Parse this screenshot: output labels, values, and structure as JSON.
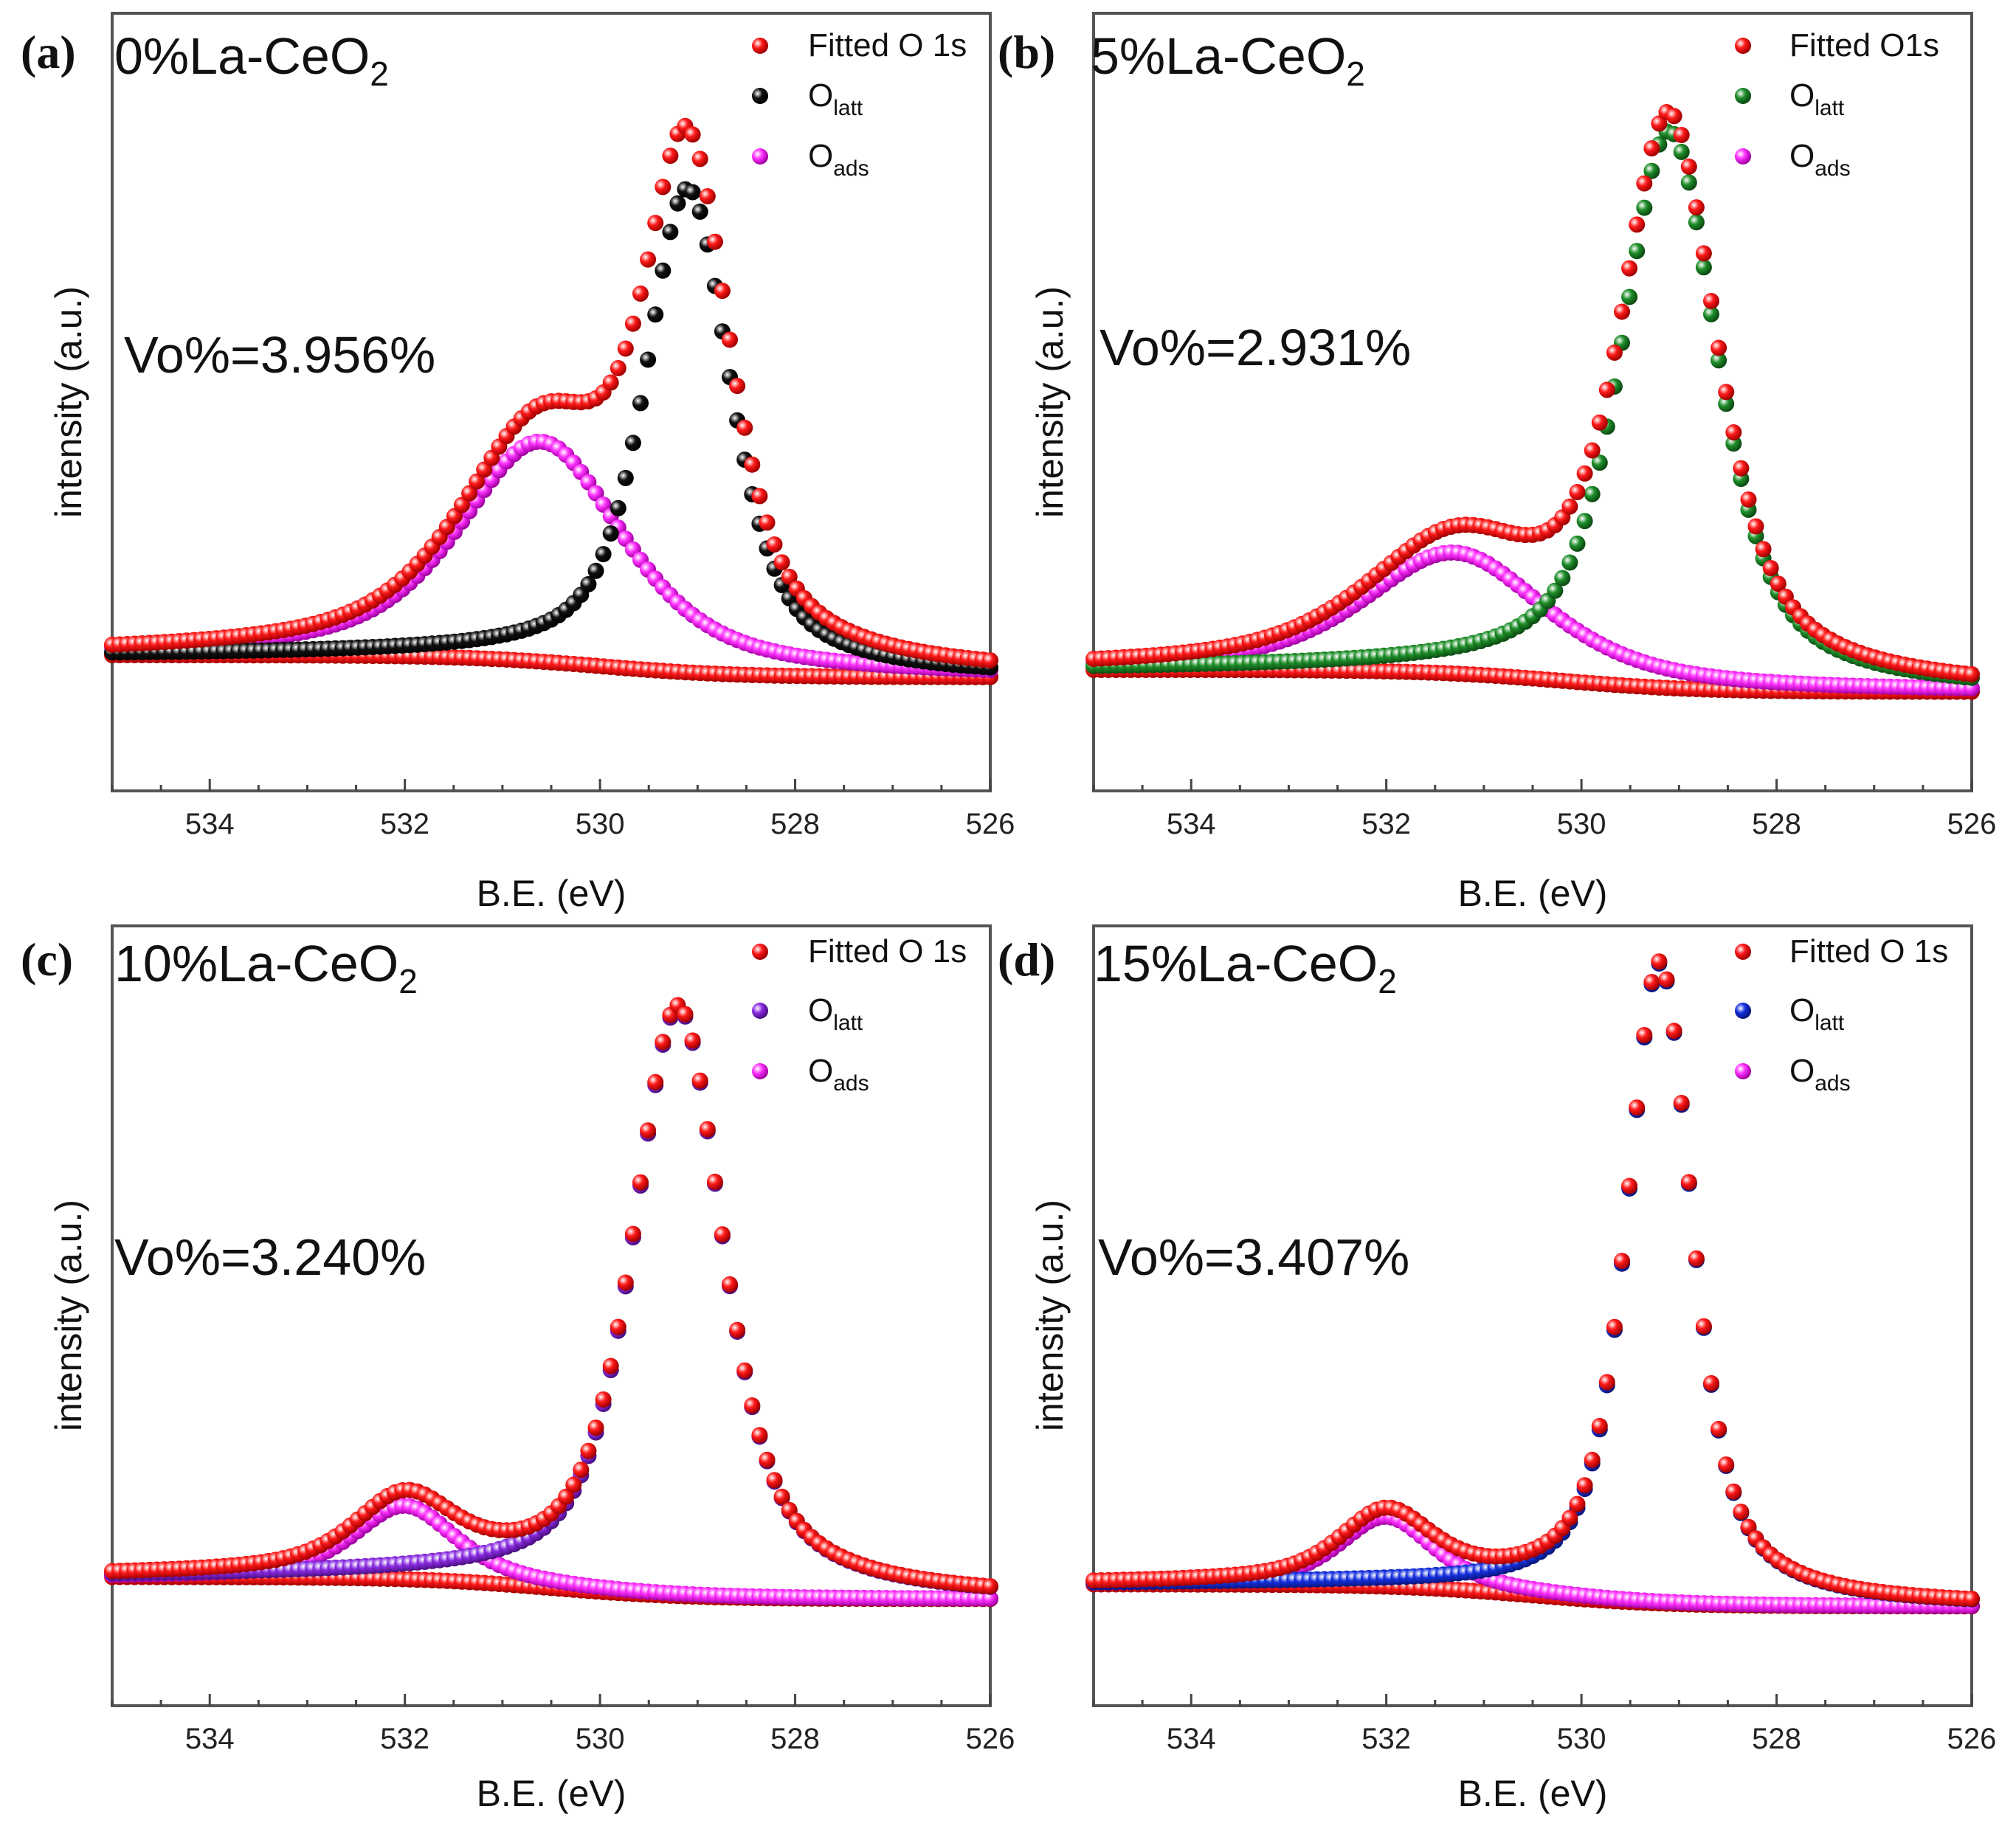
{
  "chart_data": [
    {
      "type": "scatter",
      "panel_label": "(a)",
      "title_prefix": "0%La-CeO",
      "title_sub": "2",
      "annotation": "Vo%=3.956%",
      "xlabel": "B.E. (eV)",
      "ylabel": "intensity (a.u.)",
      "xlim": [
        535,
        526
      ],
      "ylim": [
        0,
        1
      ],
      "xticks": [
        534,
        532,
        530,
        528,
        526
      ],
      "colors": {
        "fitted": "#ff1a1a",
        "latt": "#111111",
        "ads": "#ff33ff",
        "background": "#ff1a1a"
      },
      "legend": [
        {
          "base": "Fitted O 1s",
          "sub": "",
          "series": "fitted"
        },
        {
          "base": "O",
          "sub": "latt",
          "series": "latt"
        },
        {
          "base": "O",
          "sub": "ads",
          "series": "ads"
        }
      ],
      "peaks": {
        "latt": {
          "center": 529.1,
          "height": 0.66,
          "width": 0.55
        },
        "ads": {
          "center": 530.6,
          "height": 0.3,
          "width": 1.05
        },
        "background": {
          "low": 0.135,
          "high": 0.165,
          "step_center": 530.0
        }
      }
    },
    {
      "type": "scatter",
      "panel_label": "(b)",
      "title_prefix": "5%La-CeO",
      "title_sub": "2",
      "annotation": "Vo%=2.931%",
      "xlabel": "B.E. (eV)",
      "ylabel": "intensity (a.u.)",
      "xlim": [
        535,
        526
      ],
      "ylim": [
        0,
        1
      ],
      "xticks": [
        534,
        532,
        530,
        528,
        526
      ],
      "colors": {
        "fitted": "#ff1a1a",
        "latt": "#1f8f2a",
        "ads": "#ff33ff",
        "background": "#ff1a1a"
      },
      "legend": [
        {
          "base": "Fitted O1s",
          "sub": "",
          "series": "fitted"
        },
        {
          "base": "O",
          "sub": "latt",
          "series": "latt"
        },
        {
          "base": "O",
          "sub": "ads",
          "series": "ads"
        }
      ],
      "peaks": {
        "latt": {
          "center": 529.1,
          "height": 0.76,
          "width": 0.62
        },
        "ads": {
          "center": 531.3,
          "height": 0.165,
          "width": 1.15
        },
        "background": {
          "low": 0.115,
          "high": 0.145,
          "step_center": 530.2
        }
      }
    },
    {
      "type": "scatter",
      "panel_label": "(c)",
      "title_prefix": "10%La-CeO",
      "title_sub": "2",
      "annotation": "Vo%=3.240%",
      "xlabel": "B.E. (eV)",
      "ylabel": "intensity (a.u.)",
      "xlim": [
        535,
        526
      ],
      "ylim": [
        0,
        1
      ],
      "xticks": [
        534,
        532,
        530,
        528,
        526
      ],
      "colors": {
        "fitted": "#ff1a1a",
        "latt": "#8a2be2",
        "ads": "#ff33ff",
        "background": "#ff1a1a"
      },
      "legend": [
        {
          "base": "Fitted O 1s",
          "sub": "",
          "series": "fitted"
        },
        {
          "base": "O",
          "sub": "latt",
          "series": "latt"
        },
        {
          "base": "O",
          "sub": "ads",
          "series": "ads"
        }
      ],
      "peaks": {
        "latt": {
          "center": 529.2,
          "height": 0.8,
          "width": 0.58
        },
        "ads": {
          "center": 532.0,
          "height": 0.1,
          "width": 0.65
        },
        "background": {
          "low": 0.125,
          "high": 0.155,
          "step_center": 530.5
        }
      }
    },
    {
      "type": "scatter",
      "panel_label": "(d)",
      "title_prefix": "15%La-CeO",
      "title_sub": "2",
      "annotation": "Vo%=3.407%",
      "xlabel": "B.E. (eV)",
      "ylabel": "intensity (a.u.)",
      "xlim": [
        535,
        526
      ],
      "ylim": [
        0,
        1
      ],
      "xticks": [
        534,
        532,
        530,
        528,
        526
      ],
      "colors": {
        "fitted": "#ff1a1a",
        "latt": "#1530e0",
        "ads": "#ff33ff",
        "background": "#ff1a1a"
      },
      "legend": [
        {
          "base": "Fitted O 1s",
          "sub": "",
          "series": "fitted"
        },
        {
          "base": "O",
          "sub": "latt",
          "series": "latt"
        },
        {
          "base": "O",
          "sub": "ads",
          "series": "ads"
        }
      ],
      "peaks": {
        "latt": {
          "center": 529.2,
          "height": 0.87,
          "width": 0.42
        },
        "ads": {
          "center": 532.0,
          "height": 0.095,
          "width": 0.6
        },
        "background": {
          "low": 0.115,
          "high": 0.145,
          "step_center": 530.5
        }
      }
    }
  ]
}
